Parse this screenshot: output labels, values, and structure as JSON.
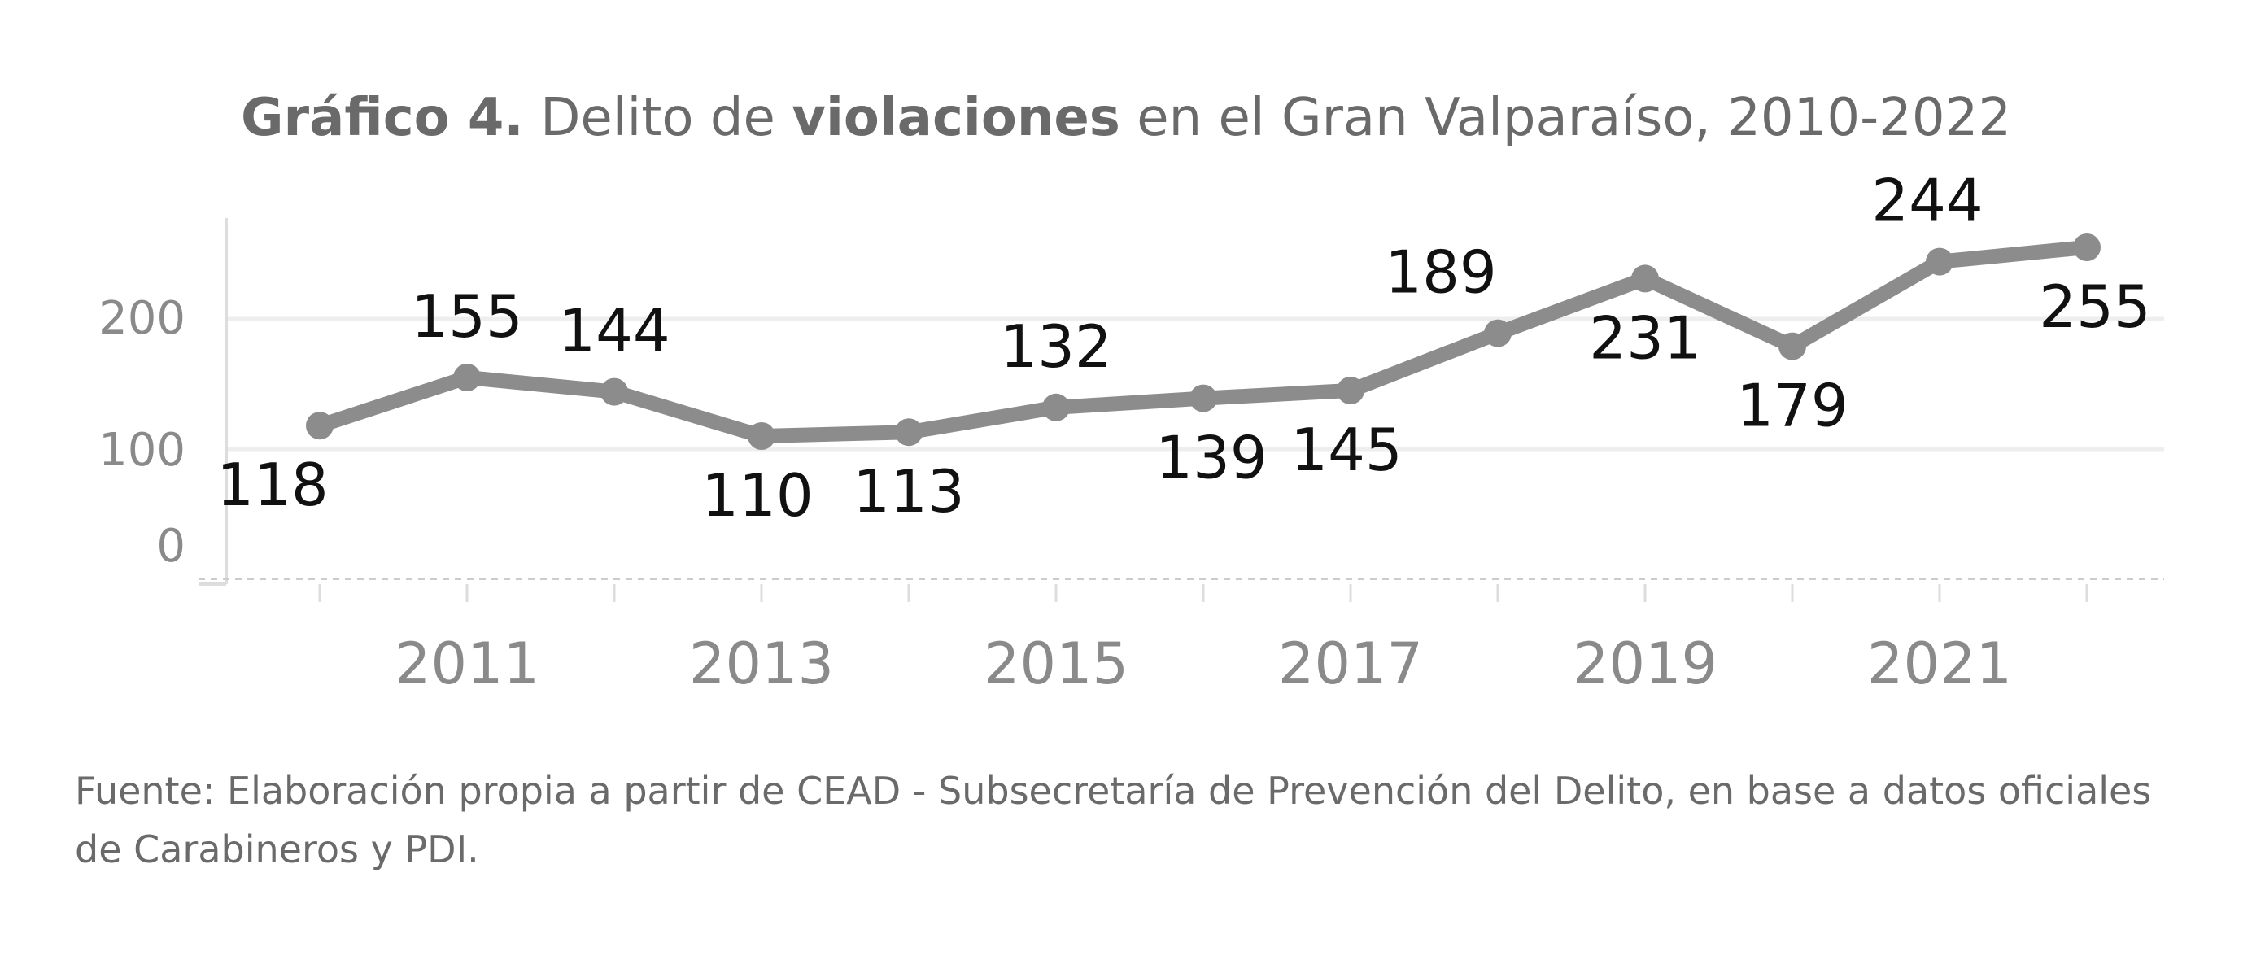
{
  "title": {
    "part1_bold": "Gráfico 4.",
    "part2": " Delito de ",
    "part3_bold": "violaciones",
    "part4": " en el Gran Valparaíso, 2010-2022"
  },
  "source": "Fuente: Elaboración propia a partir de CEAD - Subsecretaría de Prevención del Delito, en base a datos oficiales de Carabineros y PDI.",
  "colors": {
    "line": "#8c8c8c",
    "text": "#6a6a6a",
    "gridline": "#eeeeee",
    "axis": "#dddddd"
  },
  "chart_data": {
    "type": "line",
    "title": "Gráfico 4. Delito de violaciones en el Gran Valparaíso, 2010-2022",
    "xlabel": "",
    "ylabel": "",
    "x": [
      2010,
      2011,
      2012,
      2013,
      2014,
      2015,
      2016,
      2017,
      2018,
      2019,
      2020,
      2021,
      2022
    ],
    "x_tick_labels": [
      "2011",
      "2013",
      "2015",
      "2017",
      "2019",
      "2021"
    ],
    "y_tick_labels": [
      "0",
      "100",
      "200"
    ],
    "ylim": [
      0,
      280
    ],
    "grid": true,
    "series": [
      {
        "values": [
          118,
          155,
          144,
          110,
          113,
          132,
          139,
          145,
          189,
          231,
          179,
          244,
          255
        ],
        "data_labels": [
          "118",
          "155",
          "144",
          "110",
          "113",
          "132",
          "139",
          "145",
          "189",
          "231",
          "179",
          "244",
          "255"
        ]
      }
    ]
  }
}
